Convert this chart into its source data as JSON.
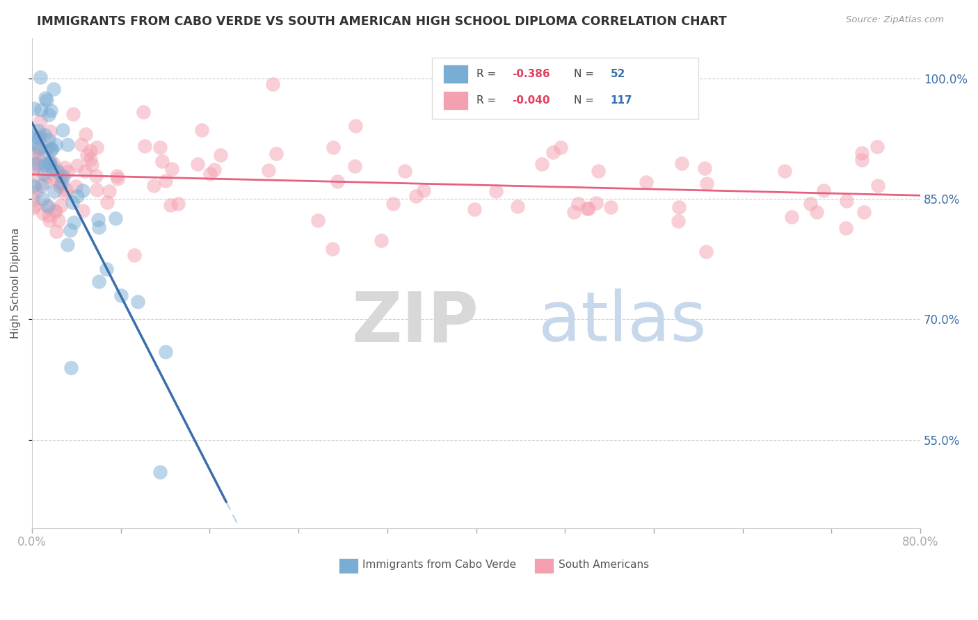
{
  "title": "IMMIGRANTS FROM CABO VERDE VS SOUTH AMERICAN HIGH SCHOOL DIPLOMA CORRELATION CHART",
  "source": "Source: ZipAtlas.com",
  "ylabel": "High School Diploma",
  "legend_blue_r": "-0.386",
  "legend_blue_n": "52",
  "legend_pink_r": "-0.040",
  "legend_pink_n": "117",
  "legend_blue_label": "Immigrants from Cabo Verde",
  "legend_pink_label": "South Americans",
  "blue_color": "#7aadd4",
  "pink_color": "#f4a0b0",
  "blue_line_color": "#3a6eab",
  "pink_line_color": "#e86080",
  "blue_dash_color": "#a8c8e8",
  "r_value_color": "#e04060",
  "n_value_color": "#3a6eab",
  "xmin": 0.0,
  "xmax": 0.8,
  "ymin": 0.44,
  "ymax": 1.05,
  "ytick_vals": [
    0.55,
    0.7,
    0.85,
    1.0
  ],
  "ytick_labels": [
    "55.0%",
    "70.0%",
    "85.0%",
    "100.0%"
  ],
  "xtick_vals": [
    0.0,
    0.08,
    0.16,
    0.24,
    0.32,
    0.4,
    0.48,
    0.56,
    0.64,
    0.72,
    0.8
  ],
  "blue_slope": -2.5,
  "blue_intercept": 0.945,
  "pink_slope": -0.03,
  "pink_intercept": 0.883
}
